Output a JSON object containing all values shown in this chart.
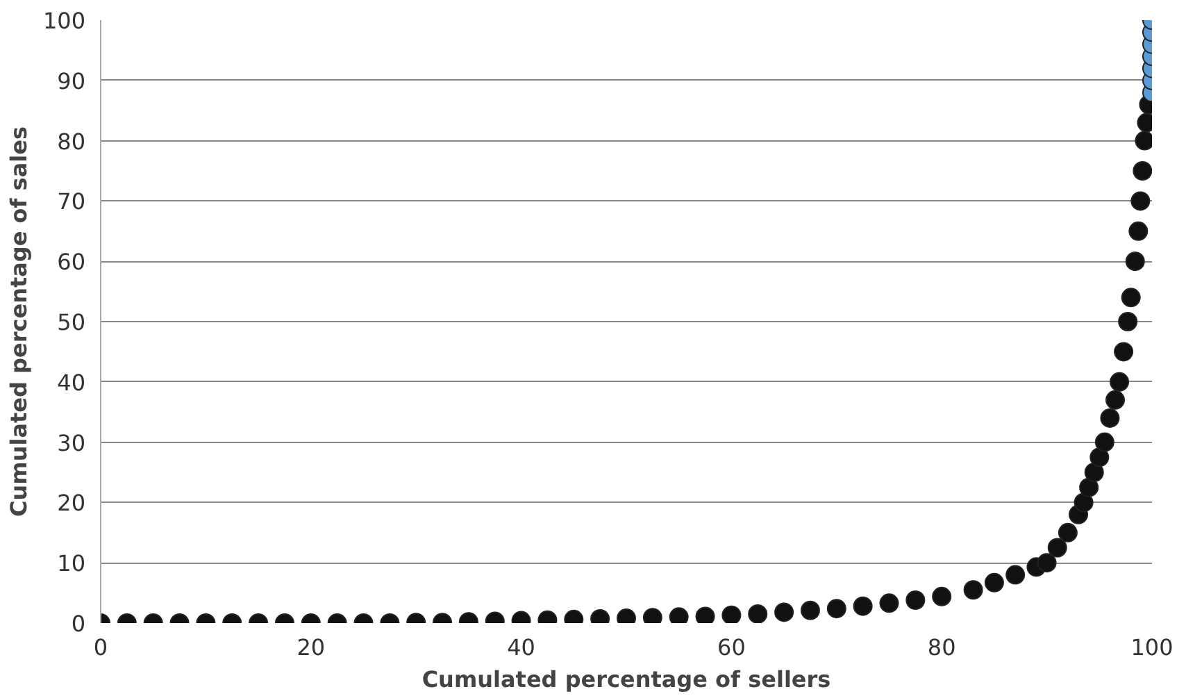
{
  "chart_data": {
    "type": "scatter",
    "xlabel": "Cumulated percentage of sellers",
    "ylabel": "Cumulated percentage of sales",
    "xlim": [
      0,
      100
    ],
    "ylim": [
      0,
      100
    ],
    "xticks": [
      0,
      20,
      40,
      60,
      80,
      100
    ],
    "yticks": [
      0,
      10,
      20,
      30,
      40,
      50,
      60,
      70,
      80,
      90,
      100
    ],
    "grid": "y",
    "marker": "circle",
    "series": [
      {
        "color": "#111111",
        "x": [
          0,
          2.5,
          5,
          7.5,
          10,
          12.5,
          15,
          17.5,
          20,
          22.5,
          25,
          27.5,
          30,
          32.5,
          35,
          37.5,
          40,
          42.5,
          45,
          47.5,
          50,
          52.5,
          55,
          57.5,
          60,
          62.5,
          65,
          67.5,
          70,
          72.5,
          75,
          77.5,
          80,
          83,
          85,
          87,
          89,
          90,
          91,
          92,
          93,
          93.5,
          94,
          94.5,
          95,
          95.5,
          96,
          96.5,
          96.9,
          97.3,
          97.7,
          98,
          98.4,
          98.7,
          98.9,
          99.1,
          99.3,
          99.5,
          99.7
        ],
        "values": [
          0,
          0,
          0,
          0,
          0,
          0,
          0,
          0,
          0,
          0,
          0,
          0,
          0.1,
          0.1,
          0.2,
          0.3,
          0.4,
          0.5,
          0.6,
          0.7,
          0.8,
          0.9,
          1,
          1.1,
          1.3,
          1.5,
          1.8,
          2.1,
          2.4,
          2.8,
          3.3,
          3.8,
          4.4,
          5.5,
          6.7,
          8,
          9.3,
          10,
          12.5,
          15,
          18,
          20,
          22.5,
          25,
          27.5,
          30,
          34,
          37,
          40,
          45,
          50,
          54,
          60,
          65,
          70,
          75,
          80,
          83,
          86
        ]
      },
      {
        "color": "#5b9bd5",
        "x": [
          100,
          100,
          100,
          100,
          100,
          100,
          100
        ],
        "values": [
          88,
          90,
          92,
          94,
          96,
          98,
          100
        ]
      }
    ]
  }
}
